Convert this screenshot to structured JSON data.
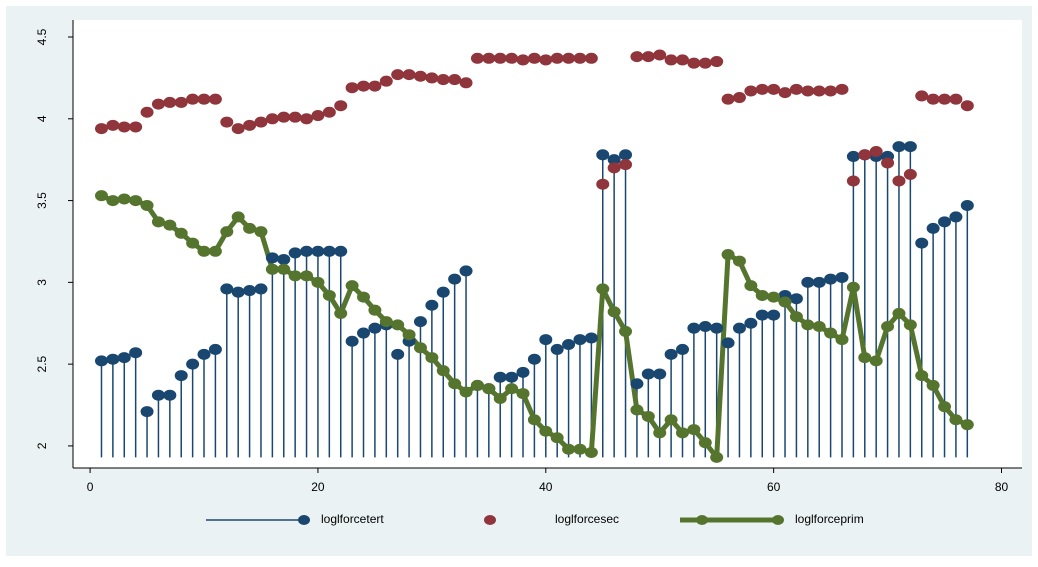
{
  "chart_data": {
    "type": "combo",
    "x": [
      1,
      2,
      3,
      4,
      5,
      6,
      7,
      8,
      9,
      10,
      11,
      12,
      13,
      14,
      15,
      16,
      17,
      18,
      19,
      20,
      21,
      22,
      23,
      24,
      25,
      26,
      27,
      28,
      29,
      30,
      31,
      32,
      33,
      34,
      35,
      36,
      37,
      38,
      39,
      40,
      41,
      42,
      43,
      44,
      45,
      46,
      47,
      48,
      49,
      50,
      51,
      52,
      53,
      54,
      55,
      56,
      57,
      58,
      59,
      60,
      61,
      62,
      63,
      64,
      65,
      66,
      67,
      68,
      69,
      70,
      71,
      72,
      73,
      74,
      75,
      76,
      77
    ],
    "series": [
      {
        "name": "loglforcetert",
        "color": "#1a476f",
        "mode": "dropline",
        "values": [
          2.52,
          2.53,
          2.54,
          2.57,
          2.21,
          2.31,
          2.31,
          2.43,
          2.5,
          2.56,
          2.59,
          2.96,
          2.94,
          2.95,
          2.96,
          3.15,
          3.14,
          3.18,
          3.19,
          3.19,
          3.19,
          3.19,
          2.64,
          2.69,
          2.72,
          2.74,
          2.56,
          2.64,
          2.76,
          2.86,
          2.94,
          3.02,
          3.07,
          2.37,
          2.35,
          2.42,
          2.42,
          2.45,
          2.53,
          2.65,
          2.59,
          2.62,
          2.65,
          2.66,
          3.78,
          3.75,
          3.78,
          2.38,
          2.44,
          2.44,
          2.56,
          2.59,
          2.72,
          2.73,
          2.72,
          2.63,
          2.72,
          2.75,
          2.8,
          2.8,
          2.92,
          2.9,
          3.0,
          3.0,
          3.02,
          3.03,
          3.77,
          3.78,
          3.77,
          3.77,
          3.83,
          3.83,
          3.24,
          3.33,
          3.37,
          3.4,
          3.47
        ]
      },
      {
        "name": "loglforcesec",
        "color": "#90353b",
        "mode": "scatter",
        "values": [
          3.94,
          3.96,
          3.95,
          3.95,
          4.04,
          4.09,
          4.1,
          4.1,
          4.12,
          4.12,
          4.12,
          3.98,
          3.94,
          3.96,
          3.98,
          4.0,
          4.01,
          4.01,
          4.0,
          4.02,
          4.04,
          4.08,
          4.19,
          4.2,
          4.2,
          4.23,
          4.27,
          4.27,
          4.26,
          4.25,
          4.24,
          4.24,
          4.22,
          4.37,
          4.37,
          4.37,
          4.37,
          4.36,
          4.37,
          4.36,
          4.37,
          4.37,
          4.37,
          4.37,
          3.6,
          3.7,
          3.72,
          4.38,
          4.38,
          4.39,
          4.36,
          4.36,
          4.34,
          4.34,
          4.35,
          4.12,
          4.13,
          4.17,
          4.18,
          4.18,
          4.16,
          4.18,
          4.17,
          4.17,
          4.17,
          4.18,
          3.62,
          3.78,
          3.8,
          3.73,
          3.62,
          3.66,
          4.14,
          4.12,
          4.12,
          4.12,
          4.08
        ]
      },
      {
        "name": "loglforceprim",
        "color": "#55752f",
        "mode": "connected",
        "values": [
          3.53,
          3.5,
          3.51,
          3.5,
          3.47,
          3.37,
          3.35,
          3.3,
          3.24,
          3.19,
          3.19,
          3.31,
          3.4,
          3.33,
          3.31,
          3.08,
          3.08,
          3.04,
          3.04,
          3.0,
          2.92,
          2.81,
          2.98,
          2.91,
          2.83,
          2.76,
          2.74,
          2.68,
          2.6,
          2.54,
          2.46,
          2.38,
          2.33,
          2.37,
          2.35,
          2.29,
          2.35,
          2.32,
          2.16,
          2.09,
          2.05,
          1.98,
          1.98,
          1.96,
          2.96,
          2.82,
          2.7,
          2.22,
          2.18,
          2.08,
          2.16,
          2.08,
          2.1,
          2.02,
          1.93,
          3.17,
          3.13,
          2.98,
          2.92,
          2.91,
          2.88,
          2.79,
          2.74,
          2.73,
          2.69,
          2.65,
          2.97,
          2.54,
          2.52,
          2.73,
          2.81,
          2.74,
          2.43,
          2.37,
          2.24,
          2.16,
          2.13
        ]
      }
    ],
    "xlim": [
      -1.5,
      81.8
    ],
    "xticks": [
      0,
      20,
      40,
      60,
      80
    ],
    "ylim": [
      1.865,
      4.604
    ],
    "yticks": [
      2,
      2.5,
      3,
      3.5,
      4,
      4.5
    ]
  }
}
